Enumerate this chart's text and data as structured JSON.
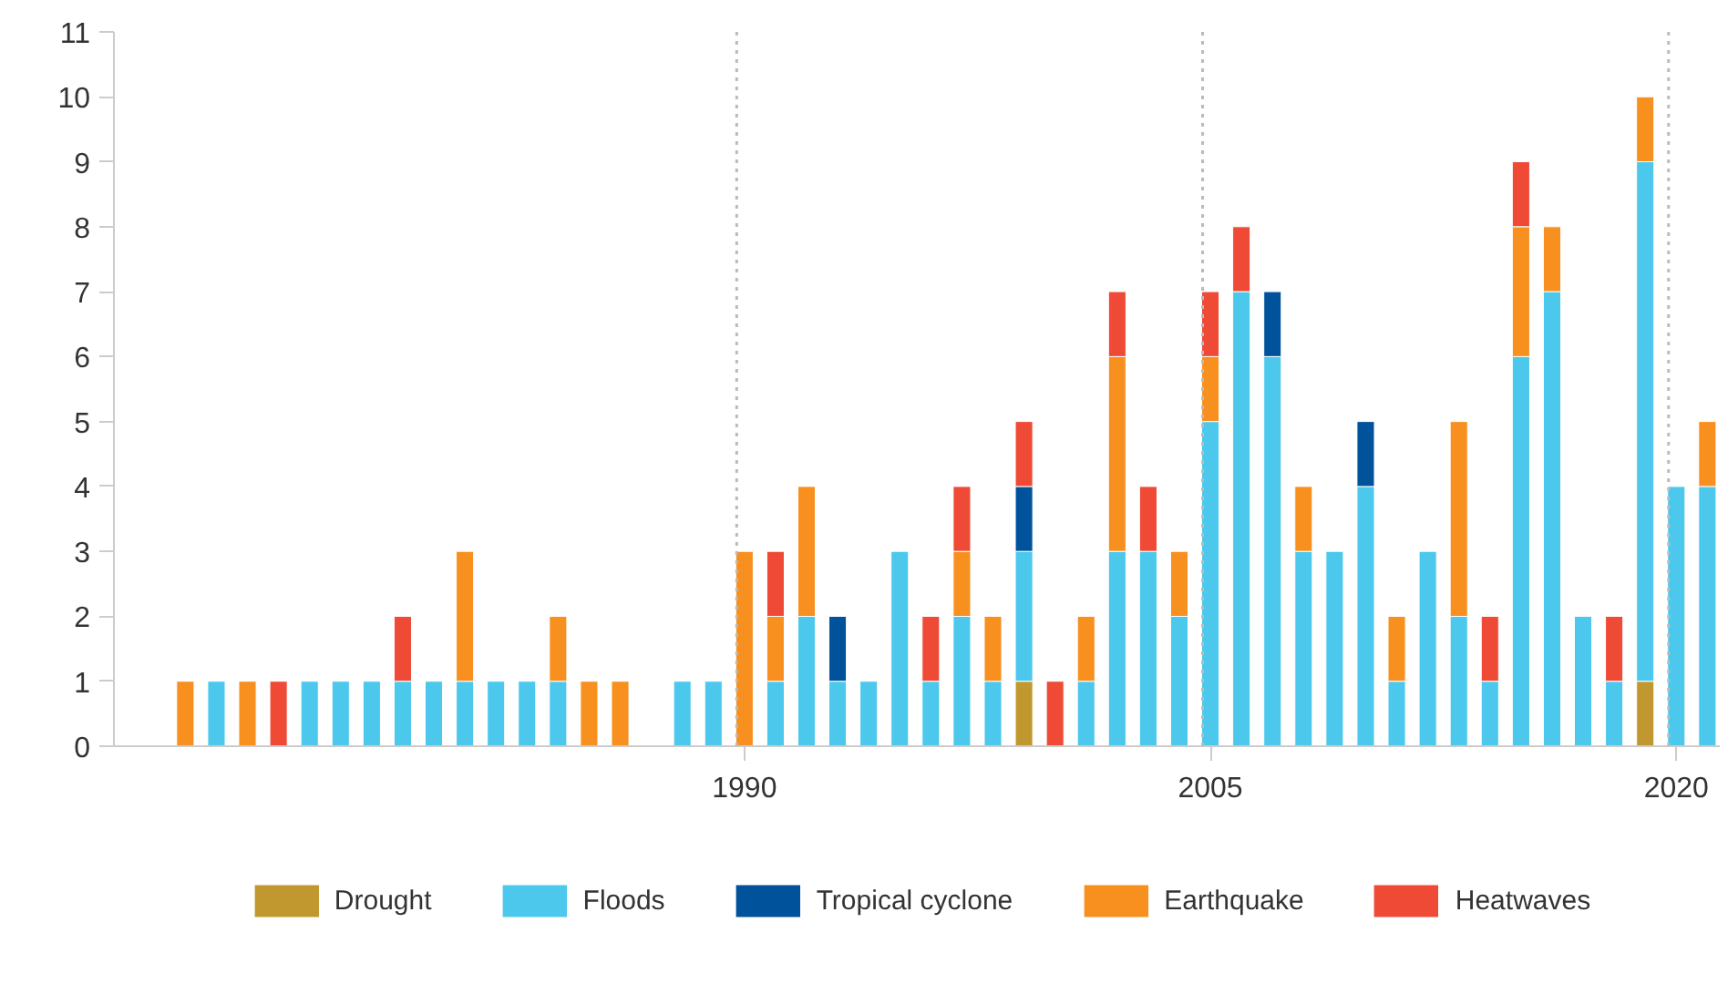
{
  "chart_data": {
    "type": "bar",
    "stacked": true,
    "x": [
      1972,
      1973,
      1974,
      1975,
      1976,
      1977,
      1978,
      1979,
      1980,
      1981,
      1982,
      1983,
      1984,
      1985,
      1986,
      1987,
      1988,
      1989,
      1990,
      1991,
      1992,
      1993,
      1994,
      1995,
      1996,
      1997,
      1998,
      1999,
      2000,
      2001,
      2002,
      2003,
      2004,
      2005,
      2006,
      2007,
      2008,
      2009,
      2010,
      2011,
      2012,
      2013,
      2014,
      2015,
      2016,
      2017,
      2018,
      2019,
      2020,
      2021
    ],
    "series": [
      {
        "name": "Drought",
        "color": "#c0982f",
        "values": [
          null,
          null,
          null,
          null,
          null,
          null,
          null,
          null,
          null,
          null,
          null,
          null,
          null,
          null,
          null,
          null,
          null,
          null,
          null,
          null,
          null,
          null,
          null,
          null,
          null,
          null,
          null,
          1,
          null,
          null,
          null,
          null,
          null,
          null,
          null,
          null,
          null,
          null,
          null,
          null,
          null,
          null,
          null,
          null,
          null,
          null,
          null,
          1,
          null,
          null
        ]
      },
      {
        "name": "Floods",
        "color": "#4bc8ec",
        "values": [
          null,
          1,
          null,
          null,
          1,
          1,
          1,
          1,
          1,
          1,
          1,
          1,
          1,
          null,
          null,
          null,
          1,
          1,
          null,
          1,
          2,
          1,
          1,
          3,
          1,
          2,
          1,
          2,
          null,
          1,
          3,
          3,
          2,
          5,
          7,
          6,
          3,
          3,
          4,
          1,
          3,
          2,
          1,
          6,
          7,
          2,
          1,
          8,
          4,
          4
        ]
      },
      {
        "name": "Tropical cyclone",
        "color": "#00529b",
        "values": [
          null,
          null,
          null,
          null,
          null,
          null,
          null,
          null,
          null,
          null,
          null,
          null,
          null,
          null,
          null,
          null,
          null,
          null,
          null,
          null,
          null,
          1,
          null,
          null,
          null,
          null,
          null,
          1,
          null,
          null,
          null,
          null,
          null,
          null,
          null,
          1,
          null,
          null,
          1,
          null,
          null,
          null,
          null,
          null,
          null,
          null,
          null,
          null,
          null,
          null
        ]
      },
      {
        "name": "Earthquake",
        "color": "#f7901e",
        "values": [
          1,
          null,
          1,
          null,
          null,
          null,
          null,
          null,
          null,
          2,
          null,
          null,
          1,
          1,
          1,
          null,
          null,
          null,
          3,
          1,
          2,
          null,
          null,
          null,
          null,
          1,
          1,
          null,
          null,
          1,
          3,
          null,
          1,
          1,
          null,
          null,
          1,
          null,
          null,
          1,
          null,
          3,
          null,
          2,
          1,
          null,
          null,
          1,
          null,
          1
        ]
      },
      {
        "name": "Heatwaves",
        "color": "#ef4a36",
        "values": [
          null,
          null,
          null,
          1,
          null,
          null,
          null,
          1,
          null,
          null,
          null,
          null,
          null,
          null,
          null,
          null,
          null,
          null,
          null,
          1,
          null,
          null,
          null,
          null,
          1,
          1,
          null,
          1,
          1,
          null,
          1,
          1,
          null,
          1,
          1,
          null,
          null,
          null,
          null,
          null,
          null,
          null,
          1,
          1,
          null,
          null,
          1,
          null,
          null,
          null
        ]
      }
    ],
    "xlim": [
      1969.7,
      2021.4
    ],
    "xticks": [
      1990,
      2005,
      2020
    ],
    "ylim": [
      0,
      11
    ],
    "yticks": [
      0,
      1,
      2,
      3,
      4,
      5,
      6,
      7,
      8,
      9,
      10,
      11
    ],
    "ref_lines": [
      {
        "axis": "x",
        "value": 1989.75,
        "color": "#bbbbbb",
        "line_style": "dotted"
      },
      {
        "axis": "x",
        "value": 2004.75,
        "color": "#bbbbbb",
        "line_style": "dotted"
      },
      {
        "axis": "x",
        "value": 2019.75,
        "color": "#bbbbbb",
        "line_style": "dotted"
      }
    ],
    "grid": false,
    "legend": "bottom"
  }
}
